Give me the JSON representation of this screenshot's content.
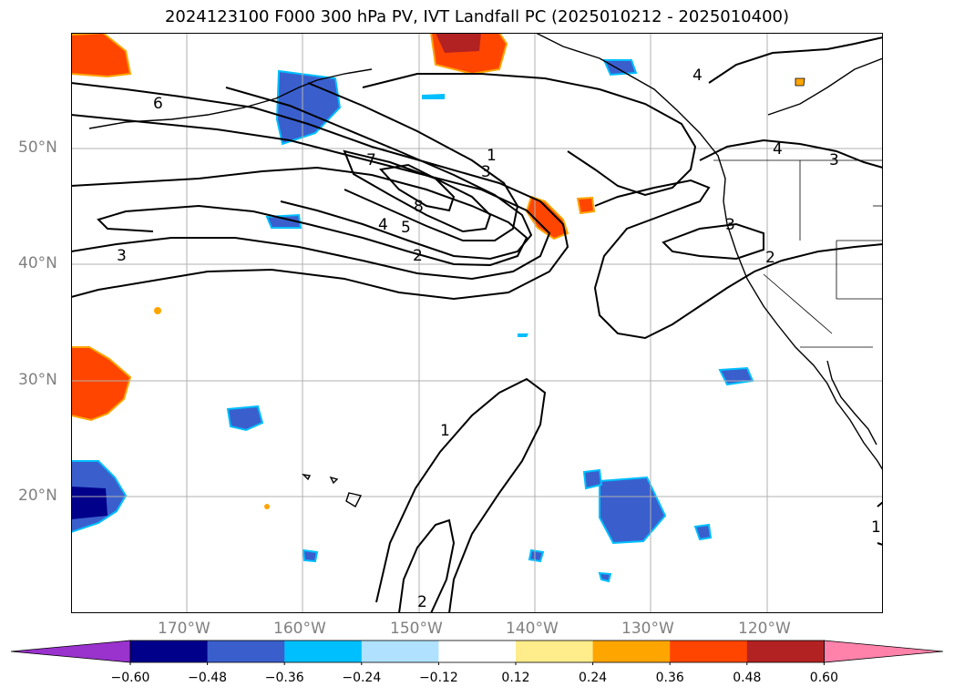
{
  "title": "2024123100 F000 300 hPa PV, IVT Landfall PC (2025010212 - 2025010400)",
  "map": {
    "lat_labels": [
      "50°N",
      "40°N",
      "30°N",
      "20°N"
    ],
    "lon_labels": [
      "170°W",
      "160°W",
      "150°W",
      "140°W",
      "130°W",
      "120°W"
    ],
    "contour_labels": [
      "6",
      "7",
      "8",
      "5",
      "4",
      "3",
      "2",
      "1",
      "3",
      "4",
      "3",
      "3",
      "2",
      "1",
      "2",
      "1",
      "4"
    ]
  },
  "colorbar": {
    "colors": [
      "#9a32cd",
      "#00008b",
      "#3a5fcd",
      "#00bfff",
      "#b0e2ff",
      "#ffffff",
      "#ffec8b",
      "#ffa500",
      "#ff4500",
      "#b22222",
      "#ff82ab"
    ],
    "tick_labels": [
      "−0.60",
      "−0.48",
      "−0.36",
      "−0.24",
      "−0.12",
      "0.12",
      "0.24",
      "0.36",
      "0.48",
      "0.60"
    ]
  }
}
